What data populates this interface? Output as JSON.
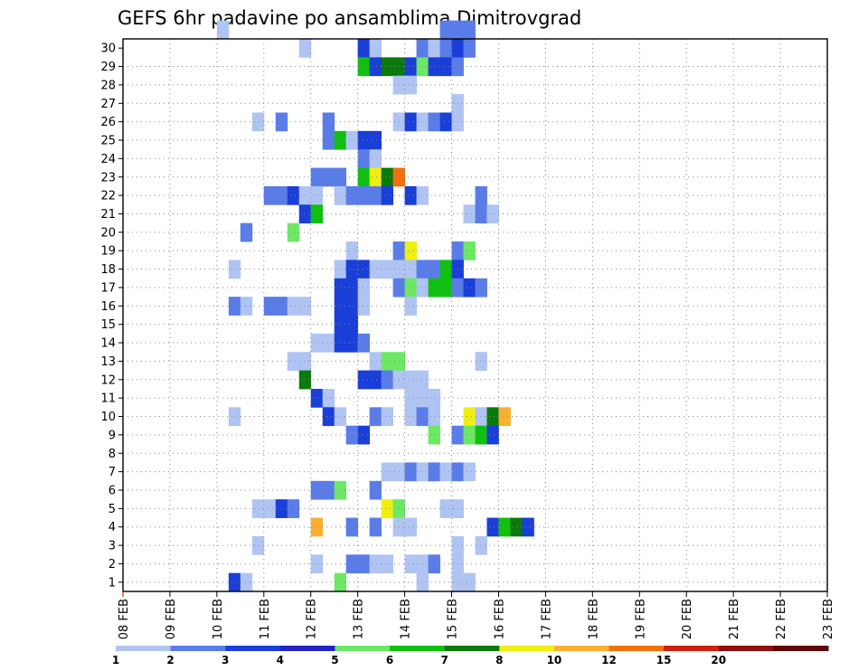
{
  "chart_data": {
    "type": "heatmap",
    "title": "GEFS 6hr padavine po ansamblima Dimitrovgrad",
    "x_tick_labels": [
      "08 FEB",
      "09 FEB",
      "10 FEB",
      "11 FEB",
      "12 FEB",
      "13 FEB",
      "14 FEB",
      "15 FEB",
      "16 FEB",
      "17 FEB",
      "18 FEB",
      "19 FEB",
      "20 FEB",
      "21 FEB",
      "22 FEB",
      "23 FEB"
    ],
    "xlim": [
      0,
      60
    ],
    "ylim": [
      0,
      30
    ],
    "y_ticks": [
      1,
      2,
      3,
      4,
      5,
      6,
      7,
      8,
      9,
      10,
      11,
      12,
      13,
      14,
      15,
      16,
      17,
      18,
      19,
      20,
      21,
      22,
      23,
      24,
      25,
      26,
      27,
      28,
      29,
      30
    ],
    "grid": true,
    "colorbar": {
      "labels": [
        "1",
        "2",
        "3",
        "4",
        "5",
        "6",
        "7",
        "8",
        "10",
        "12",
        "15",
        "20"
      ],
      "colors": [
        "#b0c4f4",
        "#5a7ce8",
        "#1a3ed8",
        "#2424c4",
        "#6ce864",
        "#10c010",
        "#0a7a0a",
        "#f0f010",
        "#f8b030",
        "#f07010",
        "#d02010",
        "#901010",
        "#600808"
      ]
    },
    "cells": [
      [
        8,
        30,
        0
      ],
      [
        27,
        30,
        1
      ],
      [
        28,
        30,
        1
      ],
      [
        29,
        30,
        1
      ],
      [
        15,
        29,
        0
      ],
      [
        20,
        29,
        2
      ],
      [
        21,
        29,
        0
      ],
      [
        25,
        29,
        1
      ],
      [
        26,
        29,
        0
      ],
      [
        27,
        29,
        1
      ],
      [
        28,
        29,
        2
      ],
      [
        29,
        29,
        1
      ],
      [
        20,
        28,
        5
      ],
      [
        21,
        28,
        2
      ],
      [
        22,
        28,
        6
      ],
      [
        23,
        28,
        6
      ],
      [
        24,
        28,
        2
      ],
      [
        25,
        28,
        4
      ],
      [
        26,
        28,
        2
      ],
      [
        27,
        28,
        2
      ],
      [
        28,
        28,
        1
      ],
      [
        23,
        27,
        0
      ],
      [
        24,
        27,
        0
      ],
      [
        28,
        26,
        0
      ],
      [
        11,
        25,
        0
      ],
      [
        13,
        25,
        1
      ],
      [
        17,
        25,
        1
      ],
      [
        23,
        25,
        0
      ],
      [
        24,
        25,
        2
      ],
      [
        25,
        25,
        0
      ],
      [
        26,
        25,
        1
      ],
      [
        27,
        25,
        2
      ],
      [
        28,
        25,
        0
      ],
      [
        17,
        24,
        1
      ],
      [
        18,
        24,
        5
      ],
      [
        19,
        24,
        0
      ],
      [
        20,
        24,
        2
      ],
      [
        21,
        24,
        2
      ],
      [
        20,
        23,
        1
      ],
      [
        21,
        23,
        0
      ],
      [
        16,
        22,
        1
      ],
      [
        17,
        22,
        1
      ],
      [
        18,
        22,
        1
      ],
      [
        20,
        22,
        5
      ],
      [
        21,
        22,
        7
      ],
      [
        22,
        22,
        6
      ],
      [
        23,
        22,
        9
      ],
      [
        12,
        21,
        1
      ],
      [
        13,
        21,
        1
      ],
      [
        14,
        21,
        2
      ],
      [
        15,
        21,
        0
      ],
      [
        16,
        21,
        0
      ],
      [
        18,
        21,
        0
      ],
      [
        19,
        21,
        1
      ],
      [
        20,
        21,
        1
      ],
      [
        21,
        21,
        1
      ],
      [
        22,
        21,
        2
      ],
      [
        24,
        21,
        2
      ],
      [
        25,
        21,
        0
      ],
      [
        30,
        21,
        1
      ],
      [
        15,
        20,
        2
      ],
      [
        16,
        20,
        5
      ],
      [
        29,
        20,
        0
      ],
      [
        30,
        20,
        1
      ],
      [
        31,
        20,
        0
      ],
      [
        10,
        19,
        1
      ],
      [
        14,
        19,
        4
      ],
      [
        19,
        18,
        0
      ],
      [
        23,
        18,
        1
      ],
      [
        24,
        18,
        7
      ],
      [
        28,
        18,
        1
      ],
      [
        29,
        18,
        4
      ],
      [
        9,
        17,
        0
      ],
      [
        18,
        17,
        0
      ],
      [
        19,
        17,
        2
      ],
      [
        20,
        17,
        2
      ],
      [
        21,
        17,
        0
      ],
      [
        22,
        17,
        0
      ],
      [
        23,
        17,
        0
      ],
      [
        24,
        17,
        0
      ],
      [
        25,
        17,
        1
      ],
      [
        26,
        17,
        1
      ],
      [
        27,
        17,
        5
      ],
      [
        28,
        17,
        2
      ],
      [
        18,
        16,
        2
      ],
      [
        19,
        16,
        2
      ],
      [
        20,
        16,
        0
      ],
      [
        23,
        16,
        1
      ],
      [
        24,
        16,
        4
      ],
      [
        25,
        16,
        0
      ],
      [
        26,
        16,
        5
      ],
      [
        27,
        16,
        5
      ],
      [
        28,
        16,
        1
      ],
      [
        29,
        16,
        2
      ],
      [
        30,
        16,
        1
      ],
      [
        9,
        15,
        1
      ],
      [
        10,
        15,
        0
      ],
      [
        12,
        15,
        1
      ],
      [
        13,
        15,
        1
      ],
      [
        14,
        15,
        0
      ],
      [
        15,
        15,
        0
      ],
      [
        18,
        15,
        2
      ],
      [
        19,
        15,
        2
      ],
      [
        20,
        15,
        0
      ],
      [
        24,
        15,
        0
      ],
      [
        18,
        14,
        2
      ],
      [
        19,
        14,
        2
      ],
      [
        16,
        13,
        0
      ],
      [
        17,
        13,
        0
      ],
      [
        18,
        13,
        2
      ],
      [
        19,
        13,
        2
      ],
      [
        20,
        13,
        1
      ],
      [
        14,
        12,
        0
      ],
      [
        15,
        12,
        0
      ],
      [
        21,
        12,
        0
      ],
      [
        22,
        12,
        4
      ],
      [
        23,
        12,
        4
      ],
      [
        30,
        12,
        0
      ],
      [
        15,
        11,
        6
      ],
      [
        20,
        11,
        2
      ],
      [
        21,
        11,
        2
      ],
      [
        22,
        11,
        1
      ],
      [
        23,
        11,
        0
      ],
      [
        24,
        11,
        0
      ],
      [
        25,
        11,
        0
      ],
      [
        16,
        10,
        2
      ],
      [
        17,
        10,
        0
      ],
      [
        24,
        10,
        0
      ],
      [
        25,
        10,
        0
      ],
      [
        26,
        10,
        0
      ],
      [
        9,
        9,
        0
      ],
      [
        17,
        9,
        2
      ],
      [
        18,
        9,
        0
      ],
      [
        21,
        9,
        1
      ],
      [
        22,
        9,
        0
      ],
      [
        24,
        9,
        0
      ],
      [
        25,
        9,
        1
      ],
      [
        26,
        9,
        0
      ],
      [
        29,
        9,
        7
      ],
      [
        30,
        9,
        0
      ],
      [
        31,
        9,
        6
      ],
      [
        32,
        9,
        8
      ],
      [
        19,
        8,
        1
      ],
      [
        20,
        8,
        2
      ],
      [
        26,
        8,
        4
      ],
      [
        28,
        8,
        1
      ],
      [
        29,
        8,
        4
      ],
      [
        30,
        8,
        5
      ],
      [
        31,
        8,
        2
      ],
      [
        22,
        6,
        0
      ],
      [
        23,
        6,
        0
      ],
      [
        24,
        6,
        1
      ],
      [
        25,
        6,
        0
      ],
      [
        26,
        6,
        1
      ],
      [
        27,
        6,
        0
      ],
      [
        28,
        6,
        1
      ],
      [
        29,
        6,
        0
      ],
      [
        16,
        5,
        1
      ],
      [
        17,
        5,
        1
      ],
      [
        18,
        5,
        4
      ],
      [
        21,
        5,
        1
      ],
      [
        11,
        4,
        0
      ],
      [
        12,
        4,
        0
      ],
      [
        13,
        4,
        2
      ],
      [
        14,
        4,
        1
      ],
      [
        22,
        4,
        7
      ],
      [
        23,
        4,
        4
      ],
      [
        27,
        4,
        0
      ],
      [
        28,
        4,
        0
      ],
      [
        16,
        3,
        8
      ],
      [
        19,
        3,
        1
      ],
      [
        21,
        3,
        1
      ],
      [
        23,
        3,
        0
      ],
      [
        24,
        3,
        0
      ],
      [
        31,
        3,
        2
      ],
      [
        32,
        3,
        5
      ],
      [
        33,
        3,
        6
      ],
      [
        34,
        3,
        2
      ],
      [
        11,
        2,
        0
      ],
      [
        28,
        2,
        0
      ],
      [
        30,
        2,
        0
      ],
      [
        16,
        1,
        0
      ],
      [
        19,
        1,
        1
      ],
      [
        20,
        1,
        1
      ],
      [
        21,
        1,
        0
      ],
      [
        22,
        1,
        0
      ],
      [
        24,
        1,
        0
      ],
      [
        25,
        1,
        0
      ],
      [
        26,
        1,
        1
      ],
      [
        28,
        1,
        0
      ],
      [
        9,
        0,
        2
      ],
      [
        10,
        0,
        0
      ],
      [
        18,
        0,
        4
      ],
      [
        25,
        0,
        0
      ],
      [
        28,
        0,
        0
      ],
      [
        29,
        0,
        0
      ]
    ]
  }
}
